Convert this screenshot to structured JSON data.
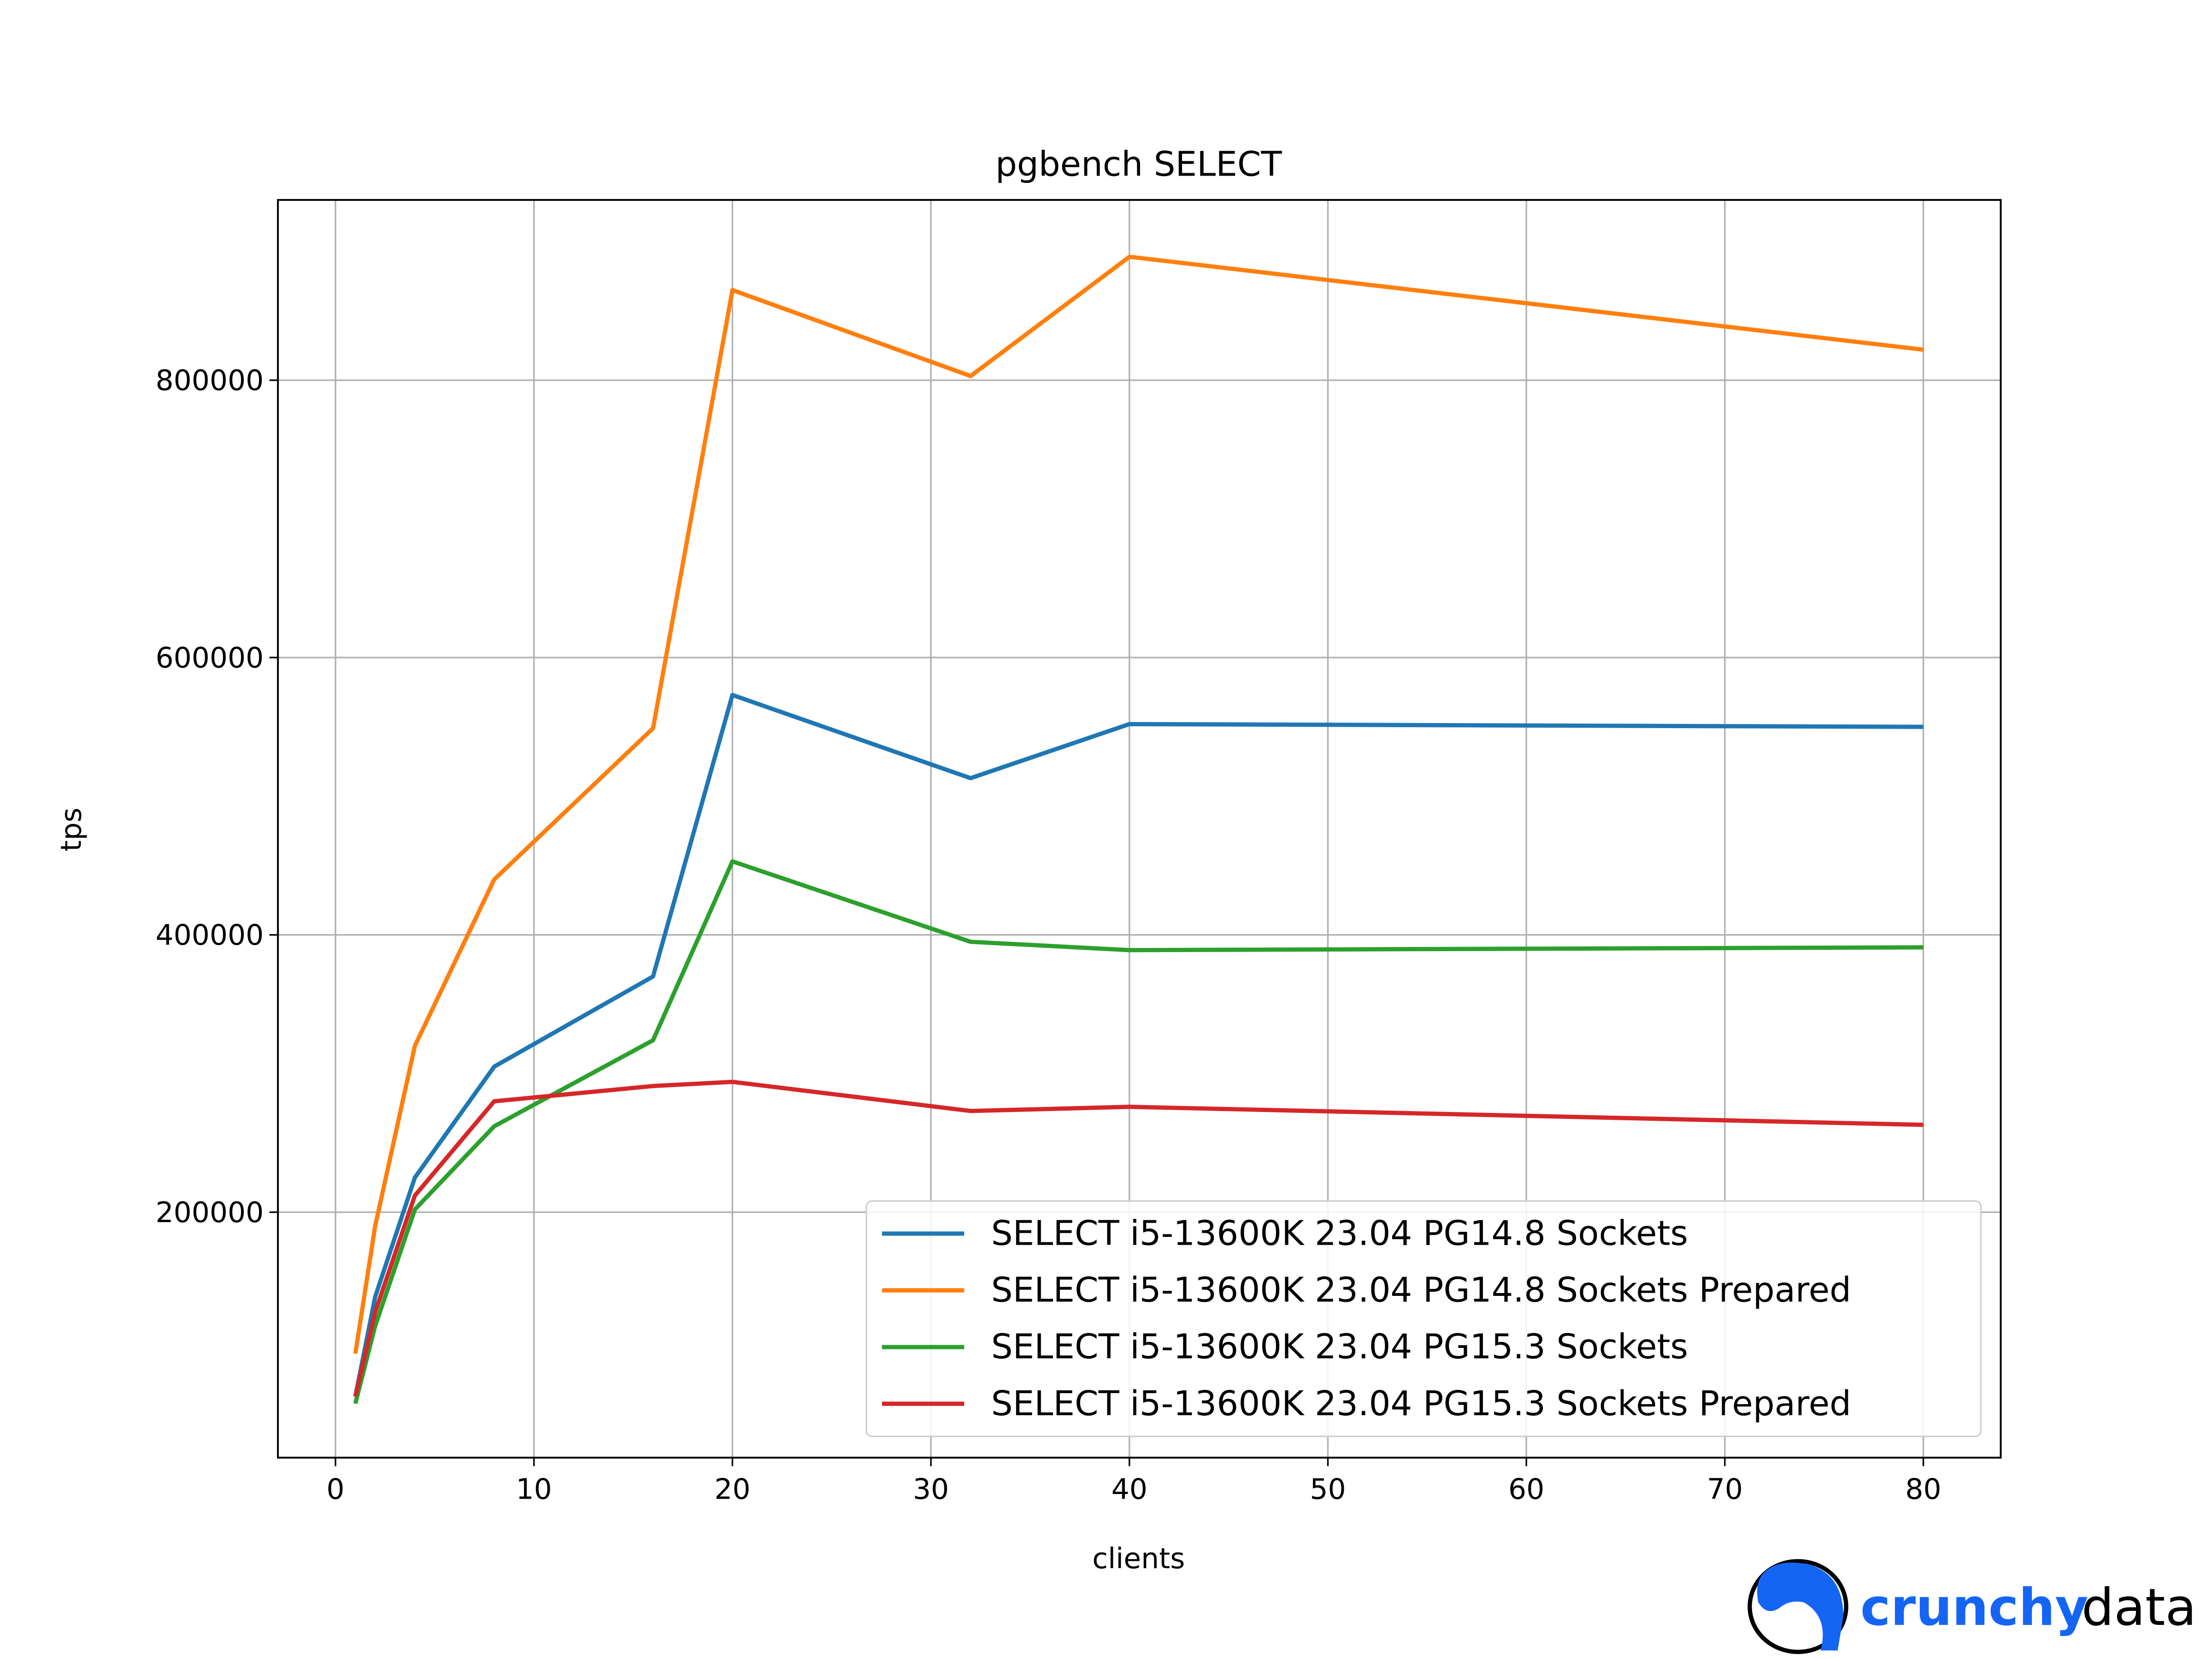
{
  "chart_data": {
    "type": "line",
    "title": "pgbench SELECT",
    "xlabel": "clients",
    "ylabel": "tps",
    "xlim": [
      -2.9,
      83.9
    ],
    "ylim": [
      23000,
      930000
    ],
    "grid": true,
    "legend_position": "lower-right",
    "x_ticks": [
      0,
      10,
      20,
      30,
      40,
      50,
      60,
      70,
      80
    ],
    "x_tick_labels": [
      "0",
      "10",
      "20",
      "30",
      "40",
      "50",
      "60",
      "70",
      "80"
    ],
    "y_ticks": [
      200000,
      400000,
      600000,
      800000
    ],
    "y_tick_labels": [
      "200000",
      "400000",
      "600000",
      "800000"
    ],
    "x": [
      1,
      2,
      4,
      8,
      16,
      20,
      32,
      40,
      80
    ],
    "series": [
      {
        "name": "SELECT i5-13600K 23.04 PG14.8 Sockets",
        "color": "#1f77b4",
        "values": [
          67000,
          139000,
          225000,
          305000,
          370000,
          573000,
          513000,
          552000,
          550000
        ]
      },
      {
        "name": "SELECT i5-13600K 23.04 PG14.8 Sockets Prepared",
        "color": "#ff7f0e",
        "values": [
          98000,
          190000,
          320000,
          440000,
          549000,
          865000,
          803000,
          889000,
          822000
        ]
      },
      {
        "name": "SELECT i5-13600K 23.04 PG15.3 Sockets",
        "color": "#2ca02c",
        "values": [
          62000,
          118000,
          202000,
          262000,
          324000,
          453000,
          395000,
          389000,
          391000
        ]
      },
      {
        "name": "SELECT i5-13600K 23.04 PG15.3 Sockets Prepared",
        "color": "#d62728",
        "values": [
          67000,
          128000,
          212000,
          280000,
          291000,
          294000,
          273000,
          276000,
          263000
        ]
      }
    ]
  },
  "logo": {
    "word1": "crunchy",
    "word2": "data",
    "brand_color": "#1565f5"
  }
}
